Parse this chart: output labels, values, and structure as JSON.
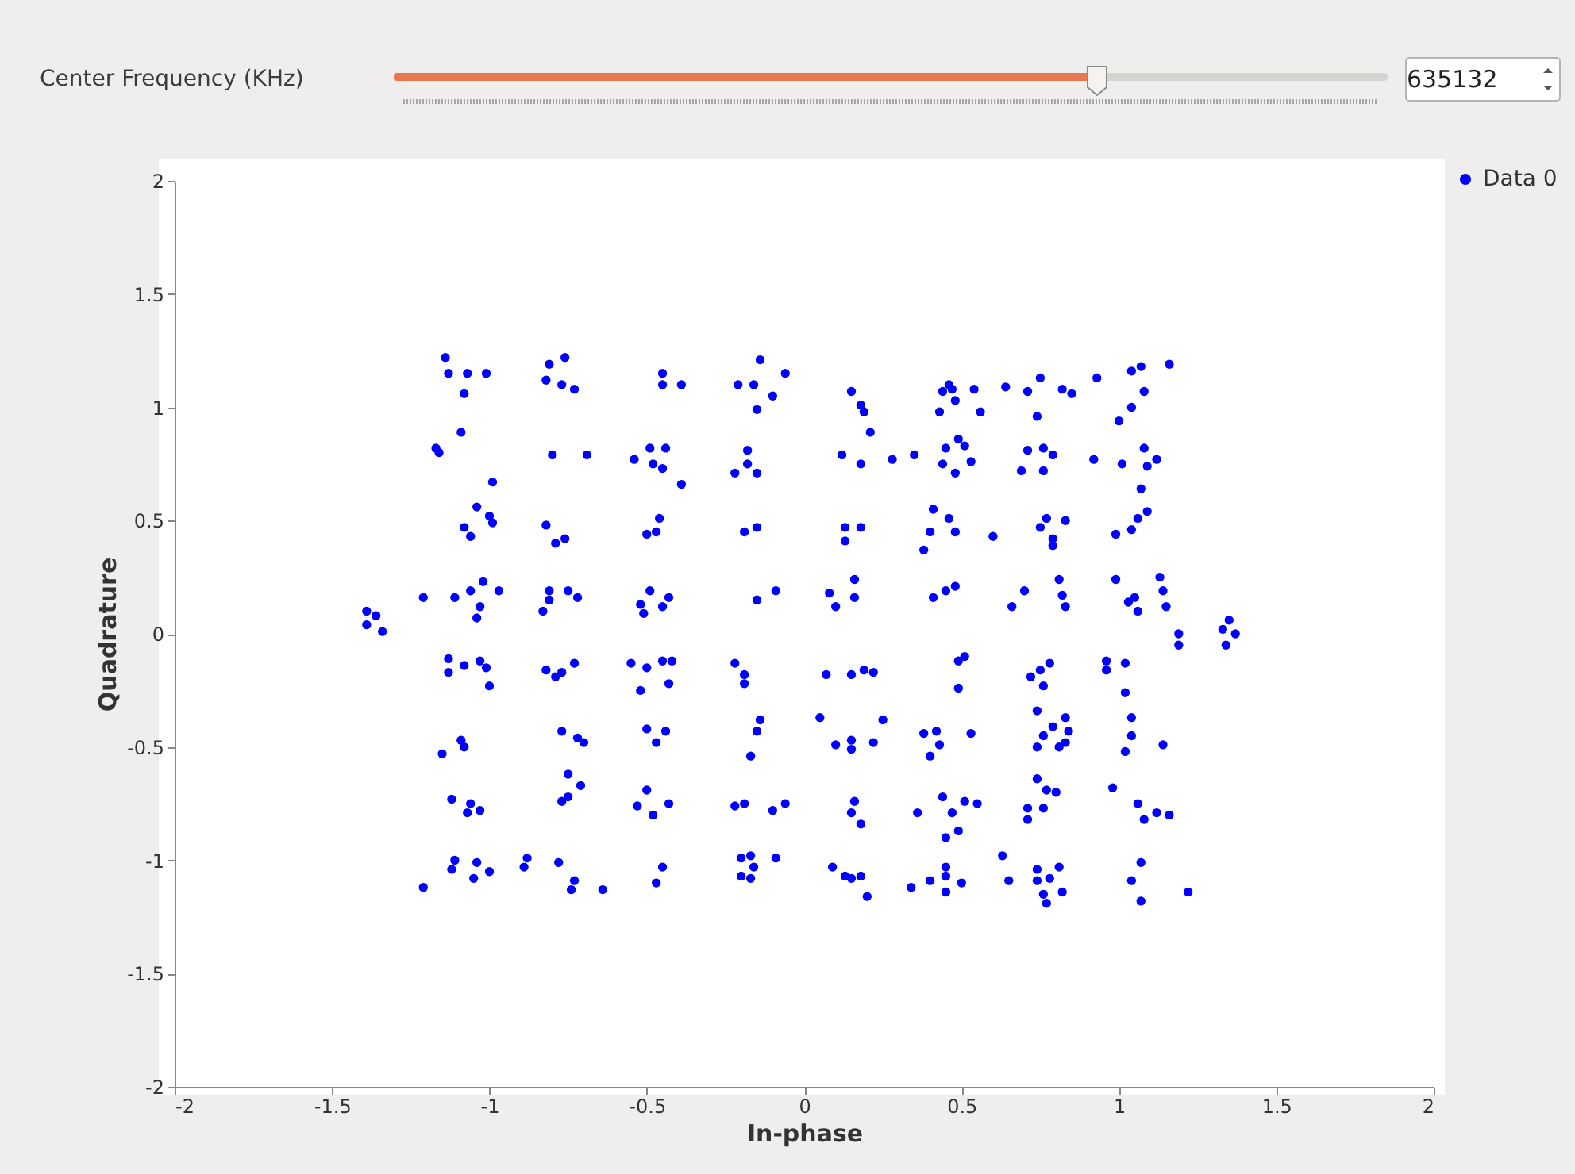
{
  "chart_data": {
    "type": "scatter",
    "xlabel": "In-phase",
    "ylabel": "Quadrature",
    "annotations": [
      "Center Frequency (KHz)",
      "635132"
    ],
    "xlim": [
      -2,
      2
    ],
    "ylim": [
      -2,
      2
    ],
    "xticks": [
      -2,
      -1.5,
      -1,
      -0.5,
      0,
      0.5,
      1,
      1.5,
      2
    ],
    "yticks": [
      -2,
      -1.5,
      -1,
      -0.5,
      0,
      0.5,
      1,
      1.5,
      2
    ],
    "grid": false,
    "legend": "top right",
    "marker": "circle",
    "series": [
      {
        "name": "Data 0",
        "color": "#0000ff",
        "x": [
          -1.14,
          -1.13,
          -1.07,
          -1.01,
          -1.08,
          -1.09,
          -0.81,
          -0.76,
          -0.82,
          -0.77,
          -0.73,
          -0.45,
          -0.45,
          -0.39,
          -0.21,
          -0.16,
          -0.14,
          -0.06,
          -0.1,
          -0.15,
          0.15,
          0.18,
          0.19,
          0.21,
          0.46,
          0.47,
          0.44,
          0.48,
          0.54,
          0.43,
          0.56,
          0.64,
          0.71,
          0.75,
          0.82,
          0.85,
          0.74,
          0.93,
          1.04,
          1.07,
          1.16,
          1.08,
          1.04,
          1.0,
          -1.17,
          -1.16,
          -0.8,
          -0.69,
          -0.54,
          -0.49,
          -0.44,
          -0.48,
          -0.45,
          -0.39,
          -0.18,
          -0.22,
          -0.18,
          -0.15,
          0.12,
          0.18,
          0.28,
          0.35,
          0.45,
          0.49,
          0.51,
          0.44,
          0.53,
          0.48,
          0.71,
          0.76,
          0.79,
          0.69,
          0.76,
          0.92,
          1.01,
          1.08,
          1.12,
          1.09,
          1.07,
          -0.99,
          -1.04,
          -1.0,
          -0.99,
          -1.08,
          -1.06,
          -0.82,
          -0.76,
          -0.79,
          -0.46,
          -0.5,
          -0.47,
          -0.19,
          -0.15,
          0.13,
          0.18,
          0.13,
          0.41,
          0.46,
          0.4,
          0.48,
          0.38,
          0.6,
          0.77,
          0.83,
          0.75,
          0.79,
          0.79,
          1.09,
          1.06,
          1.04,
          0.99,
          -1.39,
          -1.36,
          -1.39,
          -1.34,
          -1.21,
          -1.11,
          -1.06,
          -1.02,
          -0.97,
          -1.03,
          -1.04,
          -0.81,
          -0.83,
          -0.75,
          -0.72,
          -0.81,
          -0.49,
          -0.52,
          -0.45,
          -0.43,
          -0.51,
          -0.09,
          -0.15,
          0.16,
          0.08,
          0.16,
          0.1,
          0.48,
          0.45,
          0.41,
          0.7,
          0.66,
          0.81,
          0.82,
          0.83,
          0.99,
          1.13,
          1.05,
          1.03,
          1.14,
          1.15,
          1.06,
          1.19,
          1.19,
          1.33,
          1.37,
          1.34,
          1.35,
          -1.13,
          -1.08,
          -1.03,
          -1.01,
          -1.13,
          -1.0,
          -0.82,
          -0.77,
          -0.73,
          -0.79,
          -0.55,
          -0.5,
          -0.45,
          -0.42,
          -0.52,
          -0.43,
          -0.22,
          -0.19,
          -0.19,
          0.07,
          0.15,
          0.19,
          0.22,
          0.51,
          0.49,
          0.49,
          0.75,
          0.78,
          0.72,
          0.76,
          0.96,
          1.02,
          0.96,
          1.02,
          -1.15,
          -1.09,
          -1.08,
          -0.77,
          -0.72,
          -0.7,
          -0.5,
          -0.44,
          -0.47,
          -0.14,
          -0.15,
          -0.17,
          0.05,
          0.1,
          0.25,
          0.15,
          0.15,
          0.22,
          0.38,
          0.42,
          0.43,
          0.4,
          0.53,
          0.74,
          0.83,
          0.79,
          0.76,
          0.84,
          0.74,
          0.81,
          0.83,
          1.04,
          1.04,
          1.02,
          1.14,
          -1.12,
          -1.06,
          -1.07,
          -1.03,
          -0.75,
          -0.71,
          -0.75,
          -0.77,
          -0.5,
          -0.43,
          -0.53,
          -0.48,
          -0.22,
          -0.19,
          -0.1,
          -0.06,
          0.74,
          0.77,
          0.8,
          0.71,
          0.76,
          0.71,
          0.98,
          1.06,
          1.08,
          1.12,
          1.16,
          0.16,
          0.15,
          0.18,
          0.36,
          0.44,
          0.47,
          0.51,
          0.55,
          0.45,
          0.49,
          -1.11,
          -1.12,
          -1.04,
          -1.0,
          -1.05,
          -1.21,
          -0.88,
          -0.89,
          -0.78,
          -0.73,
          -0.74,
          -0.64,
          -0.45,
          -0.47,
          -0.2,
          -0.17,
          -0.16,
          -0.09,
          -0.2,
          -0.17,
          0.09,
          0.13,
          0.18,
          0.15,
          0.2,
          0.34,
          0.4,
          0.45,
          0.45,
          0.45,
          0.5,
          0.63,
          0.65,
          0.74,
          0.81,
          0.74,
          0.78,
          0.82,
          0.76,
          0.77,
          1.07,
          1.04,
          1.07,
          1.22
        ],
        "values": [
          1.22,
          1.15,
          1.15,
          1.15,
          1.06,
          0.89,
          1.19,
          1.22,
          1.12,
          1.1,
          1.08,
          1.15,
          1.1,
          1.1,
          1.1,
          1.1,
          1.21,
          1.15,
          1.05,
          0.99,
          1.07,
          1.01,
          0.98,
          0.89,
          1.1,
          1.08,
          1.07,
          1.03,
          1.08,
          0.98,
          0.98,
          1.09,
          1.07,
          1.13,
          1.08,
          1.06,
          0.96,
          1.13,
          1.16,
          1.18,
          1.19,
          1.07,
          1.0,
          0.94,
          0.82,
          0.8,
          0.79,
          0.79,
          0.77,
          0.82,
          0.82,
          0.75,
          0.73,
          0.66,
          0.81,
          0.71,
          0.75,
          0.71,
          0.79,
          0.75,
          0.77,
          0.79,
          0.82,
          0.86,
          0.83,
          0.75,
          0.76,
          0.71,
          0.81,
          0.82,
          0.79,
          0.72,
          0.72,
          0.77,
          0.75,
          0.82,
          0.77,
          0.74,
          0.64,
          0.67,
          0.56,
          0.52,
          0.49,
          0.47,
          0.43,
          0.48,
          0.42,
          0.4,
          0.51,
          0.44,
          0.45,
          0.45,
          0.47,
          0.47,
          0.47,
          0.41,
          0.55,
          0.51,
          0.45,
          0.45,
          0.37,
          0.43,
          0.51,
          0.5,
          0.47,
          0.42,
          0.39,
          0.54,
          0.51,
          0.46,
          0.44,
          0.1,
          0.08,
          0.04,
          0.01,
          0.16,
          0.16,
          0.19,
          0.23,
          0.19,
          0.12,
          0.07,
          0.19,
          0.1,
          0.19,
          0.16,
          0.15,
          0.19,
          0.13,
          0.12,
          0.16,
          0.09,
          0.19,
          0.15,
          0.24,
          0.18,
          0.16,
          0.12,
          0.21,
          0.19,
          0.16,
          0.19,
          0.12,
          0.24,
          0.17,
          0.12,
          0.24,
          0.25,
          0.16,
          0.14,
          0.19,
          0.12,
          0.1,
          0.0,
          -0.05,
          0.02,
          0.0,
          -0.05,
          0.06,
          -0.11,
          -0.14,
          -0.12,
          -0.15,
          -0.17,
          -0.23,
          -0.16,
          -0.17,
          -0.13,
          -0.19,
          -0.13,
          -0.15,
          -0.12,
          -0.12,
          -0.25,
          -0.22,
          -0.13,
          -0.18,
          -0.22,
          -0.18,
          -0.18,
          -0.16,
          -0.17,
          -0.1,
          -0.12,
          -0.24,
          -0.16,
          -0.13,
          -0.19,
          -0.23,
          -0.12,
          -0.13,
          -0.16,
          -0.26,
          -0.53,
          -0.47,
          -0.5,
          -0.43,
          -0.46,
          -0.48,
          -0.42,
          -0.43,
          -0.48,
          -0.38,
          -0.43,
          -0.54,
          -0.37,
          -0.49,
          -0.38,
          -0.47,
          -0.51,
          -0.48,
          -0.44,
          -0.43,
          -0.49,
          -0.54,
          -0.44,
          -0.34,
          -0.37,
          -0.41,
          -0.45,
          -0.43,
          -0.5,
          -0.5,
          -0.48,
          -0.37,
          -0.45,
          -0.52,
          -0.49,
          -0.73,
          -0.75,
          -0.79,
          -0.78,
          -0.62,
          -0.67,
          -0.72,
          -0.74,
          -0.69,
          -0.75,
          -0.76,
          -0.8,
          -0.76,
          -0.75,
          -0.78,
          -0.75,
          -0.64,
          -0.69,
          -0.7,
          -0.77,
          -0.77,
          -0.82,
          -0.68,
          -0.75,
          -0.82,
          -0.79,
          -0.8,
          -0.74,
          -0.79,
          -0.84,
          -0.79,
          -0.72,
          -0.79,
          -0.74,
          -0.75,
          -0.9,
          -0.87,
          -1.0,
          -1.04,
          -1.01,
          -1.05,
          -1.08,
          -1.12,
          -0.99,
          -1.03,
          -1.01,
          -1.09,
          -1.13,
          -1.13,
          -1.03,
          -1.1,
          -0.99,
          -0.98,
          -1.03,
          -0.99,
          -1.07,
          -1.08,
          -1.03,
          -1.07,
          -1.07,
          -1.08,
          -1.16,
          -1.12,
          -1.09,
          -1.03,
          -1.07,
          -1.14,
          -1.1,
          -0.98,
          -1.09,
          -1.04,
          -1.03,
          -1.09,
          -1.08,
          -1.14,
          -1.15,
          -1.19,
          -1.01,
          -1.09,
          -1.18,
          -1.14
        ]
      }
    ]
  }
}
